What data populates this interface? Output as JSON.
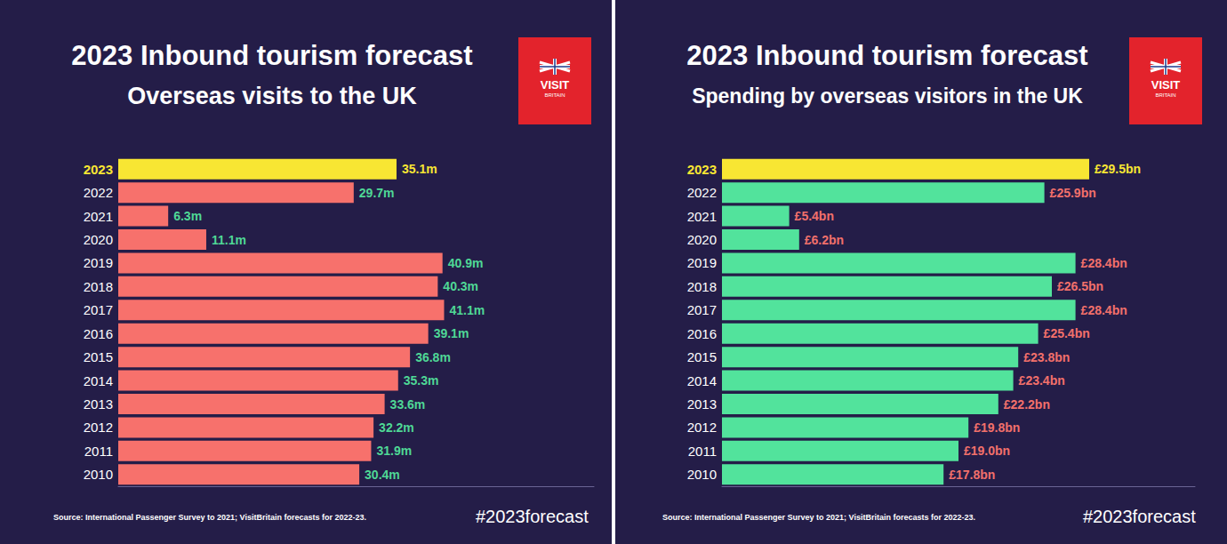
{
  "chart_data": [
    {
      "type": "bar",
      "orientation": "horizontal",
      "title": "2023 Inbound tourism forecast",
      "subtitle": "Overseas visits to the UK",
      "logo_text": [
        "VISIT",
        "BRITAIN"
      ],
      "source": "Source: International Passenger Survey to 2021; VisitBritain forecasts for 2022-23.",
      "hashtag": "#2023forecast",
      "categories": [
        "2023",
        "2022",
        "2021",
        "2020",
        "2019",
        "2018",
        "2017",
        "2016",
        "2015",
        "2014",
        "2013",
        "2012",
        "2011",
        "2010"
      ],
      "values": [
        35.1,
        29.7,
        6.3,
        11.1,
        40.9,
        40.3,
        41.1,
        39.1,
        36.8,
        35.3,
        33.6,
        32.2,
        31.9,
        30.4
      ],
      "value_labels": [
        "35.1m",
        "29.7m",
        "6.3m",
        "11.1m",
        "40.9m",
        "40.3m",
        "41.1m",
        "39.1m",
        "36.8m",
        "35.3m",
        "33.6m",
        "32.2m",
        "31.9m",
        "30.4m"
      ],
      "colors": [
        "#f8e633",
        "#f7716c",
        "#f7716c",
        "#f7716c",
        "#f7716c",
        "#f7716c",
        "#f7716c",
        "#f7716c",
        "#f7716c",
        "#f7716c",
        "#f7716c",
        "#f7716c",
        "#f7716c",
        "#f7716c"
      ],
      "xlim": [
        0,
        60
      ],
      "data_labels": true,
      "grid": false,
      "tick_labels": "y"
    },
    {
      "type": "bar",
      "orientation": "horizontal",
      "title": "2023 Inbound tourism forecast",
      "subtitle": "Spending by overseas visitors in the UK",
      "logo_text": [
        "VISIT",
        "BRITAIN"
      ],
      "source": "Source: International Passenger Survey to 2021; VisitBritain forecasts for 2022-23.",
      "hashtag": "#2023forecast",
      "categories": [
        "2023",
        "2022",
        "2021",
        "2020",
        "2019",
        "2018",
        "2017",
        "2016",
        "2015",
        "2014",
        "2013",
        "2012",
        "2011",
        "2010"
      ],
      "values": [
        29.5,
        25.9,
        5.4,
        6.2,
        28.4,
        26.5,
        28.4,
        25.4,
        23.8,
        23.4,
        22.2,
        19.8,
        19.0,
        17.8
      ],
      "value_labels": [
        "£29.5bn",
        "£25.9bn",
        "£5.4bn",
        "£6.2bn",
        "£28.4bn",
        "£26.5bn",
        "£28.4bn",
        "£25.4bn",
        "£23.8bn",
        "£23.4bn",
        "£22.2bn",
        "£19.8bn",
        "£19.0bn",
        "£17.8bn"
      ],
      "colors": [
        "#f8e633",
        "#52e39c",
        "#52e39c",
        "#52e39c",
        "#52e39c",
        "#52e39c",
        "#52e39c",
        "#52e39c",
        "#52e39c",
        "#52e39c",
        "#52e39c",
        "#52e39c",
        "#52e39c",
        "#52e39c"
      ],
      "xlim": [
        0,
        38
      ],
      "data_labels": true,
      "grid": false,
      "tick_labels": "y"
    }
  ]
}
